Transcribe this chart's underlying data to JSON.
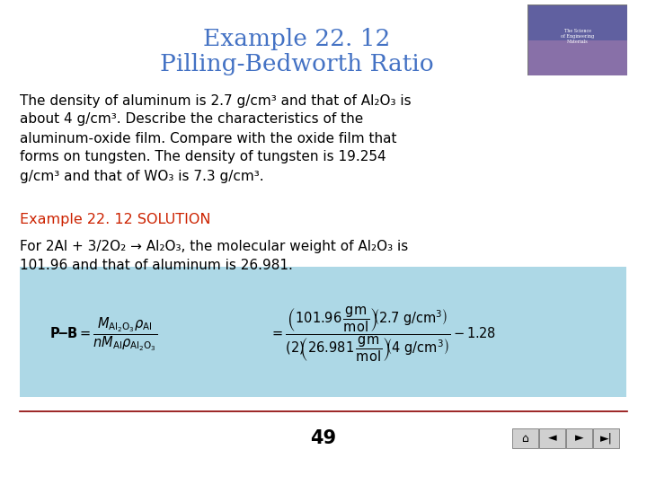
{
  "title_line1": "Example 22. 12",
  "title_line2": "Pilling-Bedworth Ratio",
  "title_color": "#4472C4",
  "background_color": "#FFFFFF",
  "body_text_color": "#000000",
  "solution_color": "#CC2200",
  "formula_bg_color": "#ADD8E6",
  "page_number": "49",
  "p1_lines": [
    "The density of aluminum is 2.7 g/cm³ and that of Al₂O₃ is",
    "about 4 g/cm³. Describe the characteristics of the",
    "aluminum-oxide film. Compare with the oxide film that",
    "forms on tungsten. The density of tungsten is 19.254",
    "g/cm³ and that of WO₃ is 7.3 g/cm³."
  ],
  "solution_label": "Example 22. 12 SOLUTION",
  "p2_lines": [
    "For 2Al + 3/2O₂ → Al₂O₃, the molecular weight of Al₂O₃ is",
    "101.96 and that of aluminum is 26.981."
  ]
}
